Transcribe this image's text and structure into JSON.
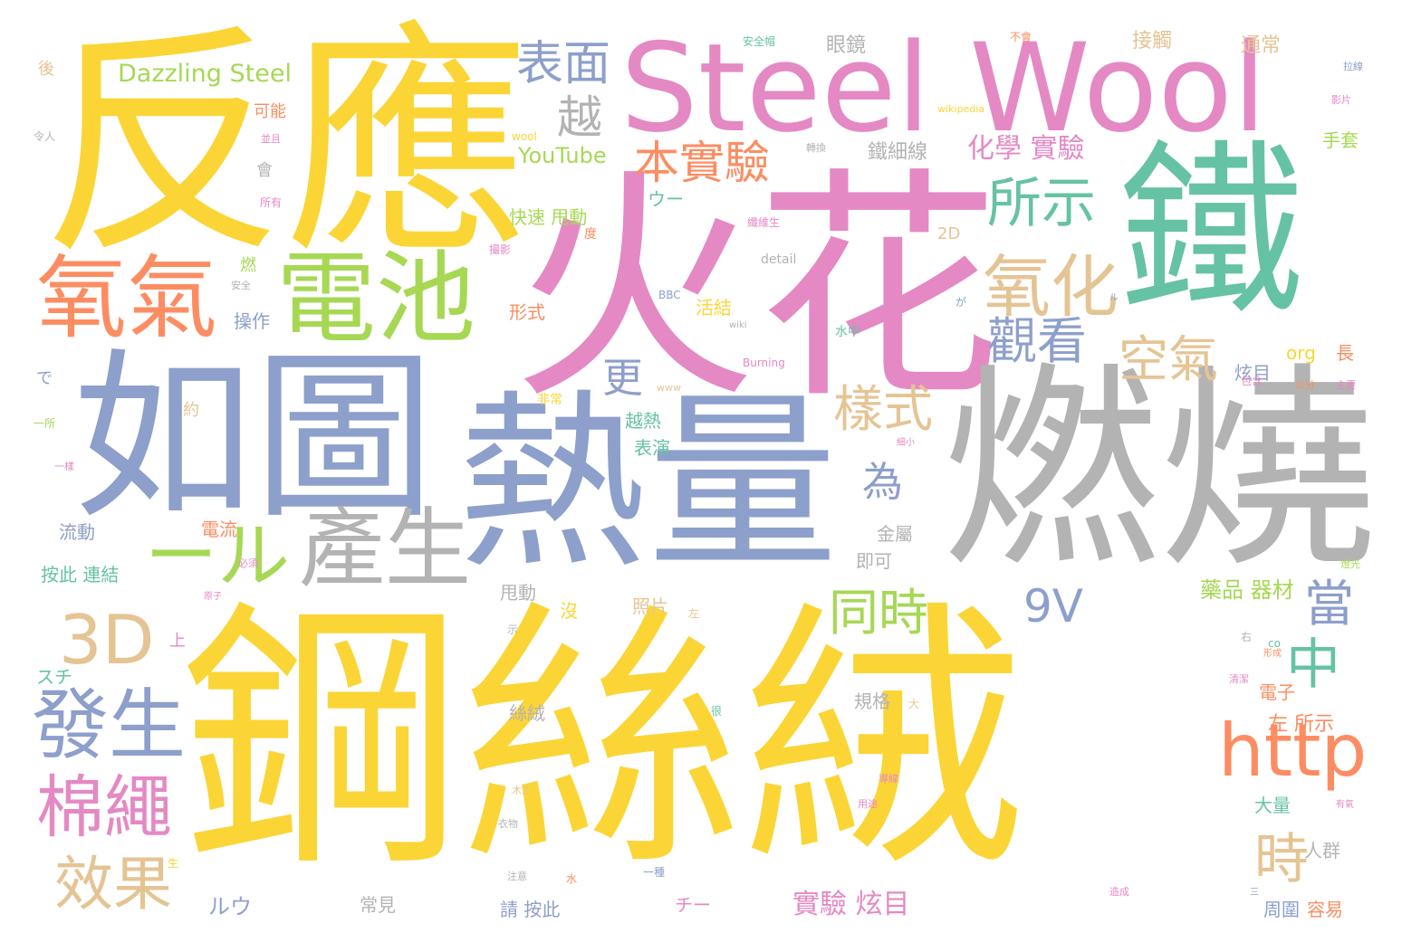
{
  "colors": {
    "yellow": "#fbd535",
    "pink": "#e489c4",
    "blue": "#8d9fcb",
    "green": "#66c2a5",
    "gray": "#b3b3b3",
    "orange": "#fc8d62",
    "lime": "#a6d854",
    "tan": "#e5c494"
  },
  "words": [
    {
      "text": "鋼絲絨",
      "color": "yellow"
    },
    {
      "text": "火花",
      "color": "pink"
    },
    {
      "text": "反應",
      "color": "yellow"
    },
    {
      "text": "燃燒",
      "color": "gray"
    },
    {
      "text": "熱量",
      "color": "blue"
    },
    {
      "text": "如圖",
      "color": "blue"
    },
    {
      "text": "鐵",
      "color": "green"
    },
    {
      "text": "Steel Wool",
      "color": "pink"
    },
    {
      "text": "電池",
      "color": "lime"
    },
    {
      "text": "氧氣",
      "color": "orange"
    },
    {
      "text": "產生",
      "color": "gray"
    },
    {
      "text": "發生",
      "color": "blue"
    },
    {
      "text": "氧化",
      "color": "tan"
    },
    {
      "text": "ール",
      "color": "lime"
    },
    {
      "text": "3D",
      "color": "tan"
    },
    {
      "text": "http",
      "color": "orange"
    },
    {
      "text": "棉繩",
      "color": "pink"
    },
    {
      "text": "效果",
      "color": "tan"
    },
    {
      "text": "所示",
      "color": "green"
    },
    {
      "text": "本實驗",
      "color": "orange"
    },
    {
      "text": "表面",
      "color": "blue"
    },
    {
      "text": "觀看",
      "color": "blue"
    },
    {
      "text": "空氣",
      "color": "tan"
    },
    {
      "text": "樣式",
      "color": "tan"
    },
    {
      "text": "同時",
      "color": "lime"
    },
    {
      "text": "中",
      "color": "green"
    },
    {
      "text": "時",
      "color": "tan"
    },
    {
      "text": "當",
      "color": "blue"
    },
    {
      "text": "9V",
      "color": "blue"
    },
    {
      "text": "越",
      "color": "gray"
    },
    {
      "text": "更",
      "color": "blue"
    },
    {
      "text": "為",
      "color": "blue"
    },
    {
      "text": "Dazzling Steel",
      "color": "lime"
    },
    {
      "text": "化學 實驗",
      "color": "pink"
    },
    {
      "text": "YouTube",
      "color": "lime"
    },
    {
      "text": "鐵細線",
      "color": "gray"
    },
    {
      "text": "實驗 炫目",
      "color": "pink"
    },
    {
      "text": "藥品 器材",
      "color": "lime"
    },
    {
      "text": "左 所示",
      "color": "orange"
    },
    {
      "text": "眼鏡",
      "color": "gray"
    },
    {
      "text": "接觸",
      "color": "tan"
    },
    {
      "text": "通常",
      "color": "tan"
    },
    {
      "text": "快速 甩動",
      "color": "lime"
    },
    {
      "text": "ウー",
      "color": "green"
    },
    {
      "text": "手套",
      "color": "lime"
    },
    {
      "text": "流動",
      "color": "blue"
    },
    {
      "text": "按此 連結",
      "color": "green"
    },
    {
      "text": "電流",
      "color": "orange"
    },
    {
      "text": "操作",
      "color": "blue"
    },
    {
      "text": "形式",
      "color": "orange"
    },
    {
      "text": "活結",
      "color": "yellow"
    },
    {
      "text": "越熱",
      "color": "green"
    },
    {
      "text": "表演",
      "color": "green"
    },
    {
      "text": "炫目",
      "color": "blue"
    },
    {
      "text": "org",
      "color": "yellow"
    },
    {
      "text": "長",
      "color": "orange"
    },
    {
      "text": "金屬",
      "color": "gray"
    },
    {
      "text": "即可",
      "color": "gray"
    },
    {
      "text": "甩動",
      "color": "gray"
    },
    {
      "text": "照片",
      "color": "tan"
    },
    {
      "text": "沒",
      "color": "yellow"
    },
    {
      "text": "規格",
      "color": "gray"
    },
    {
      "text": "絲絨",
      "color": "gray"
    },
    {
      "text": "電子",
      "color": "orange"
    },
    {
      "text": "大量",
      "color": "green"
    },
    {
      "text": "人群",
      "color": "gray"
    },
    {
      "text": "容易",
      "color": "orange"
    },
    {
      "text": "周圍",
      "color": "blue"
    },
    {
      "text": "請 按此",
      "color": "blue"
    },
    {
      "text": "常見",
      "color": "gray"
    },
    {
      "text": "ルウ",
      "color": "blue"
    },
    {
      "text": "チー",
      "color": "pink"
    },
    {
      "text": "スチ",
      "color": "green"
    },
    {
      "text": "上",
      "color": "pink"
    },
    {
      "text": "可能",
      "color": "orange"
    },
    {
      "text": "會",
      "color": "gray"
    },
    {
      "text": "燃",
      "color": "lime"
    },
    {
      "text": "2D",
      "color": "tan"
    },
    {
      "text": "後",
      "color": "tan"
    },
    {
      "text": "で",
      "color": "blue"
    },
    {
      "text": "約",
      "color": "tan"
    },
    {
      "text": "非常",
      "color": "yellow"
    },
    {
      "text": "detail",
      "color": "gray"
    },
    {
      "text": "BBC",
      "color": "blue"
    },
    {
      "text": "wool",
      "color": "yellow"
    },
    {
      "text": "wikipedia",
      "color": "yellow"
    },
    {
      "text": "Burning",
      "color": "pink"
    },
    {
      "text": "www",
      "color": "tan"
    },
    {
      "text": "水中",
      "color": "green"
    },
    {
      "text": "安全",
      "color": "gray"
    },
    {
      "text": "令人",
      "color": "gray"
    },
    {
      "text": "所有",
      "color": "pink"
    },
    {
      "text": "撮影",
      "color": "pink"
    },
    {
      "text": "度",
      "color": "orange"
    },
    {
      "text": "纖維生",
      "color": "pink"
    },
    {
      "text": "轉換",
      "color": "gray"
    },
    {
      "text": "不會",
      "color": "orange"
    },
    {
      "text": "安全帽",
      "color": "green"
    },
    {
      "text": "並且",
      "color": "pink"
    },
    {
      "text": "影片",
      "color": "pink"
    },
    {
      "text": "細小",
      "color": "pink"
    },
    {
      "text": "公分",
      "color": "orange"
    },
    {
      "text": "主要",
      "color": "pink"
    },
    {
      "text": "必須",
      "color": "pink"
    },
    {
      "text": "原子",
      "color": "pink"
    },
    {
      "text": "一所",
      "color": "lime"
    },
    {
      "text": "一樣",
      "color": "pink"
    },
    {
      "text": "包含",
      "color": "pink"
    },
    {
      "text": "大",
      "color": "tan"
    },
    {
      "text": "示",
      "color": "gray"
    },
    {
      "text": "右",
      "color": "gray"
    },
    {
      "text": "co",
      "color": "green"
    },
    {
      "text": "左",
      "color": "tan"
    },
    {
      "text": "很",
      "color": "green"
    },
    {
      "text": "水",
      "color": "orange"
    },
    {
      "text": "生",
      "color": "yellow"
    },
    {
      "text": "木工",
      "color": "tan"
    },
    {
      "text": "衣物",
      "color": "gray"
    },
    {
      "text": "注意",
      "color": "gray"
    },
    {
      "text": "一種",
      "color": "blue"
    },
    {
      "text": "三",
      "color": "blue"
    },
    {
      "text": "導線",
      "color": "pink"
    },
    {
      "text": "用途",
      "color": "pink"
    },
    {
      "text": "有氣",
      "color": "pink"
    },
    {
      "text": "形成",
      "color": "orange"
    },
    {
      "text": "清潔",
      "color": "pink"
    },
    {
      "text": "造成",
      "color": "pink"
    },
    {
      "text": "ル",
      "color": "blue"
    },
    {
      "text": "が",
      "color": "blue"
    },
    {
      "text": "wiki",
      "color": "gray"
    },
    {
      "text": "拉線",
      "color": "blue"
    },
    {
      "text": "燈光",
      "color": "lime"
    }
  ]
}
